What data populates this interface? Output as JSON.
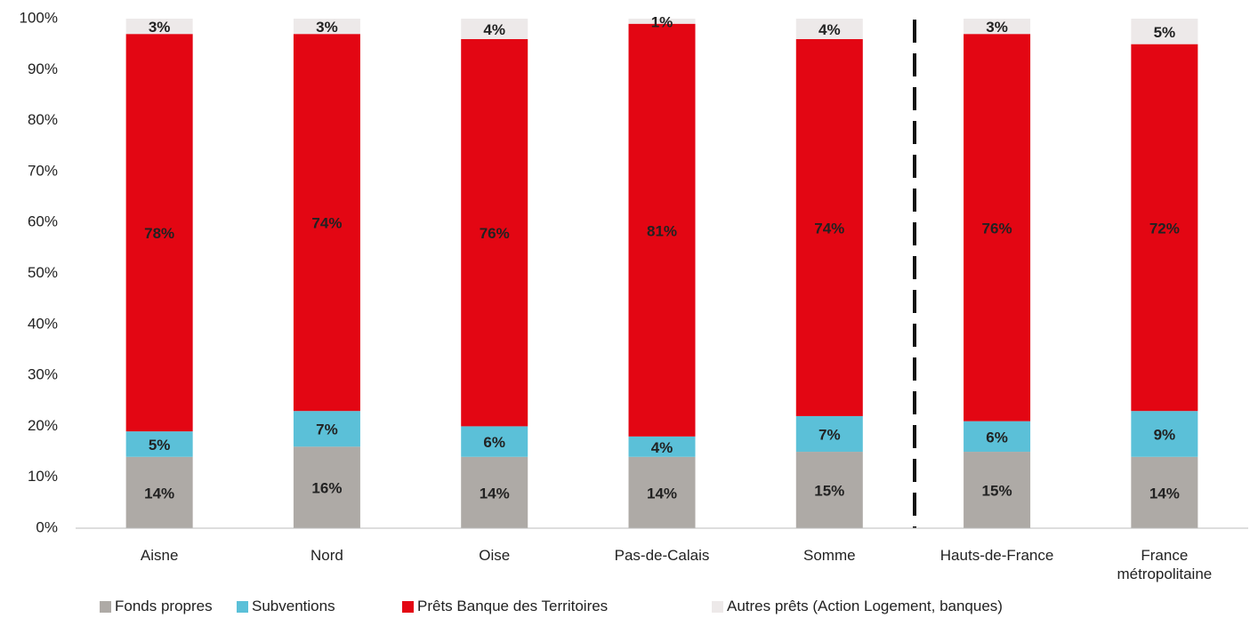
{
  "chart_data": {
    "type": "stacked_bar",
    "categories": [
      "Aisne",
      "Nord",
      "Oise",
      "Pas-de-Calais",
      "Somme",
      "Hauts-de-France",
      "France métropolitaine"
    ],
    "series": [
      {
        "name": "Fonds propres",
        "color": "#aeaaa6",
        "values": [
          14,
          16,
          14,
          14,
          15,
          15,
          14
        ],
        "value_labels": [
          "14%",
          "16%",
          "14%",
          "14%",
          "15%",
          "15%",
          "14%"
        ]
      },
      {
        "name": "Subventions",
        "color": "#5bc0d8",
        "values": [
          5,
          7,
          6,
          4,
          7,
          6,
          9
        ],
        "value_labels": [
          "5%",
          "7%",
          "6%",
          "4%",
          "7%",
          "6%",
          "9%"
        ]
      },
      {
        "name": "Prêts Banque des Territoires",
        "color": "#e30613",
        "values": [
          78,
          74,
          76,
          81,
          74,
          76,
          72
        ],
        "value_labels": [
          "78%",
          "74%",
          "76%",
          "81%",
          "74%",
          "76%",
          "72%"
        ]
      },
      {
        "name": "Autres prêts (Action Logement, banques)",
        "color": "#ede9e9",
        "values": [
          3,
          3,
          4,
          1,
          4,
          3,
          5
        ],
        "value_labels": [
          "3%",
          "3%",
          "4%",
          "1%",
          "4%",
          "3%",
          "5%"
        ]
      }
    ],
    "ylim": [
      0,
      100
    ],
    "yticks": [
      {
        "value": 0,
        "label": "0%"
      },
      {
        "value": 10,
        "label": "10%"
      },
      {
        "value": 20,
        "label": "20%"
      },
      {
        "value": 30,
        "label": "30%"
      },
      {
        "value": 40,
        "label": "40%"
      },
      {
        "value": 50,
        "label": "50%"
      },
      {
        "value": 60,
        "label": "60%"
      },
      {
        "value": 70,
        "label": "70%"
      },
      {
        "value": 80,
        "label": "80%"
      },
      {
        "value": 90,
        "label": "90%"
      },
      {
        "value": 100,
        "label": "100%"
      }
    ],
    "grid": false
  }
}
